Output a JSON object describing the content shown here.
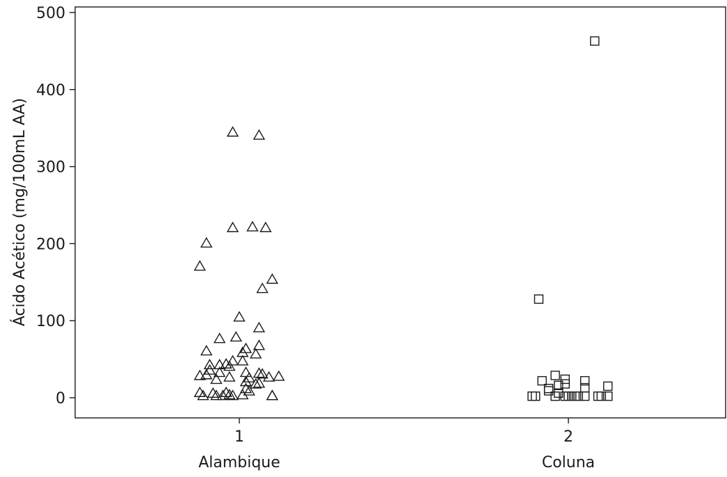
{
  "chart_data": {
    "type": "scatter",
    "title": "",
    "ylabel": "Ácido Acético (mg/100mL AA)",
    "xlabel": "",
    "ylim": [
      -25,
      505
    ],
    "xlim": [
      0.5,
      2.5
    ],
    "yticks": [
      0,
      100,
      200,
      300,
      400,
      500
    ],
    "grid": false,
    "legend": "none",
    "categories": [
      {
        "position": 1,
        "tick": "1",
        "label": "Alambique"
      },
      {
        "position": 2,
        "tick": "2",
        "label": "Coluna"
      }
    ],
    "series": [
      {
        "marker": "triangle",
        "color": "#1a1a1a",
        "points": [
          {
            "x": 0.98,
            "y": 345
          },
          {
            "x": 1.06,
            "y": 341
          },
          {
            "x": 0.98,
            "y": 221
          },
          {
            "x": 1.04,
            "y": 222
          },
          {
            "x": 1.08,
            "y": 221
          },
          {
            "x": 0.9,
            "y": 201
          },
          {
            "x": 0.88,
            "y": 171
          },
          {
            "x": 1.1,
            "y": 154
          },
          {
            "x": 1.07,
            "y": 142
          },
          {
            "x": 1.0,
            "y": 105
          },
          {
            "x": 1.06,
            "y": 91
          },
          {
            "x": 0.94,
            "y": 77
          },
          {
            "x": 0.99,
            "y": 79
          },
          {
            "x": 1.06,
            "y": 68
          },
          {
            "x": 1.02,
            "y": 64
          },
          {
            "x": 0.9,
            "y": 61
          },
          {
            "x": 1.01,
            "y": 59
          },
          {
            "x": 1.05,
            "y": 57
          },
          {
            "x": 0.98,
            "y": 48
          },
          {
            "x": 1.01,
            "y": 48
          },
          {
            "x": 0.91,
            "y": 43
          },
          {
            "x": 0.94,
            "y": 43
          },
          {
            "x": 0.96,
            "y": 44
          },
          {
            "x": 0.97,
            "y": 41
          },
          {
            "x": 0.91,
            "y": 36
          },
          {
            "x": 0.94,
            "y": 33
          },
          {
            "x": 1.02,
            "y": 33
          },
          {
            "x": 1.06,
            "y": 32
          },
          {
            "x": 1.07,
            "y": 31
          },
          {
            "x": 0.88,
            "y": 29
          },
          {
            "x": 0.9,
            "y": 30
          },
          {
            "x": 1.12,
            "y": 28
          },
          {
            "x": 0.97,
            "y": 27
          },
          {
            "x": 1.09,
            "y": 27
          },
          {
            "x": 1.03,
            "y": 26
          },
          {
            "x": 0.93,
            "y": 24
          },
          {
            "x": 1.02,
            "y": 21
          },
          {
            "x": 1.05,
            "y": 18
          },
          {
            "x": 1.06,
            "y": 19
          },
          {
            "x": 1.02,
            "y": 12
          },
          {
            "x": 1.03,
            "y": 9
          },
          {
            "x": 0.88,
            "y": 7
          },
          {
            "x": 0.92,
            "y": 6
          },
          {
            "x": 0.96,
            "y": 7
          },
          {
            "x": 0.89,
            "y": 3
          },
          {
            "x": 0.93,
            "y": 3
          },
          {
            "x": 0.95,
            "y": 3
          },
          {
            "x": 0.97,
            "y": 4
          },
          {
            "x": 0.98,
            "y": 3
          },
          {
            "x": 1.01,
            "y": 4
          },
          {
            "x": 1.1,
            "y": 3
          },
          {
            "x": 1.1,
            "y": 3
          }
        ]
      },
      {
        "marker": "square",
        "color": "#1a1a1a",
        "points": [
          {
            "x": 2.08,
            "y": 463
          },
          {
            "x": 1.91,
            "y": 128
          },
          {
            "x": 1.96,
            "y": 29
          },
          {
            "x": 1.99,
            "y": 24
          },
          {
            "x": 1.92,
            "y": 22
          },
          {
            "x": 2.05,
            "y": 22
          },
          {
            "x": 1.99,
            "y": 18
          },
          {
            "x": 1.97,
            "y": 16
          },
          {
            "x": 2.12,
            "y": 15
          },
          {
            "x": 2.05,
            "y": 13
          },
          {
            "x": 1.94,
            "y": 12
          },
          {
            "x": 1.94,
            "y": 9
          },
          {
            "x": 1.97,
            "y": 6
          },
          {
            "x": 1.89,
            "y": 2
          },
          {
            "x": 1.9,
            "y": 2
          },
          {
            "x": 1.96,
            "y": 2
          },
          {
            "x": 1.99,
            "y": 2
          },
          {
            "x": 2.0,
            "y": 2
          },
          {
            "x": 2.01,
            "y": 2
          },
          {
            "x": 2.02,
            "y": 2
          },
          {
            "x": 2.03,
            "y": 2
          },
          {
            "x": 2.05,
            "y": 2
          },
          {
            "x": 2.09,
            "y": 2
          },
          {
            "x": 2.1,
            "y": 2
          },
          {
            "x": 2.12,
            "y": 2
          }
        ]
      }
    ]
  }
}
